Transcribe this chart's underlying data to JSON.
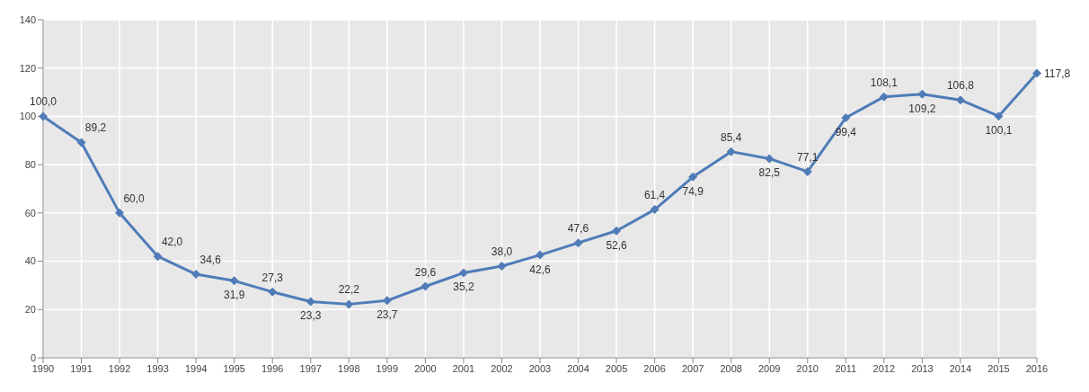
{
  "chart_data": {
    "type": "line",
    "categories": [
      "1990",
      "1991",
      "1992",
      "1993",
      "1994",
      "1995",
      "1996",
      "1997",
      "1998",
      "1999",
      "2000",
      "2001",
      "2002",
      "2003",
      "2004",
      "2005",
      "2006",
      "2007",
      "2008",
      "2009",
      "2010",
      "2011",
      "2012",
      "2013",
      "2014",
      "2015",
      "2016"
    ],
    "series": [
      {
        "color": "#4f7cb8",
        "values": [
          100.0,
          89.2,
          60.0,
          42.0,
          34.6,
          31.9,
          27.3,
          23.3,
          22.2,
          23.7,
          29.6,
          35.2,
          38.0,
          42.6,
          47.6,
          52.6,
          61.4,
          74.9,
          85.4,
          82.5,
          77.1,
          99.4,
          108.1,
          109.2,
          106.8,
          100.1,
          117.8
        ],
        "value_labels": [
          "100,0",
          "89,2",
          "60,0",
          "42,0",
          "34,6",
          "31,9",
          "27,3",
          "23,3",
          "22,2",
          "23,7",
          "29,6",
          "35,2",
          "38,0",
          "42,6",
          "47,6",
          "52,6",
          "61,4",
          "74,9",
          "85,4",
          "82,5",
          "77,1",
          "99,4",
          "108,1",
          "109,2",
          "106,8",
          "100,1",
          "117,8"
        ]
      }
    ],
    "ylim": [
      0,
      140
    ],
    "yticks": [
      0,
      20,
      40,
      60,
      80,
      100,
      120,
      140
    ],
    "grid": true,
    "marker": "diamond",
    "line_style": "solid"
  }
}
